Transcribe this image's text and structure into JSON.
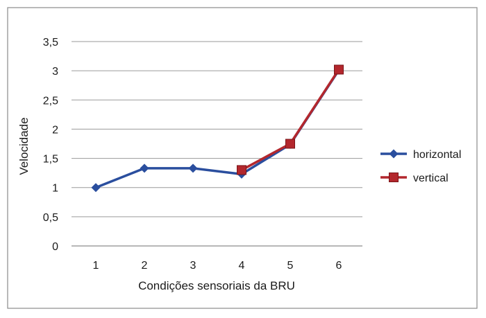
{
  "chart_data": {
    "type": "line",
    "x": [
      1,
      2,
      3,
      4,
      5,
      6
    ],
    "xlabel": "Condições sensoriais da BRU",
    "ylabel": "Velocidade",
    "ylim": [
      0,
      3.5
    ],
    "yticks": [
      "0",
      "0,5",
      "1",
      "1,5",
      "2",
      "2,5",
      "3",
      "3,5"
    ],
    "xticks": [
      "1",
      "2",
      "3",
      "4",
      "5",
      "6"
    ],
    "grid": true,
    "legend_position": "right",
    "series": [
      {
        "name": "horizontal",
        "color": "#2a4e9e",
        "marker": "diamond",
        "x": [
          1,
          2,
          3,
          4,
          5,
          6
        ],
        "values": [
          1.0,
          1.33,
          1.33,
          1.23,
          1.74,
          3.01
        ]
      },
      {
        "name": "vertical",
        "color": "#b3272d",
        "marker": "square",
        "x": [
          4,
          5,
          6
        ],
        "values": [
          1.3,
          1.75,
          3.02
        ]
      }
    ]
  }
}
